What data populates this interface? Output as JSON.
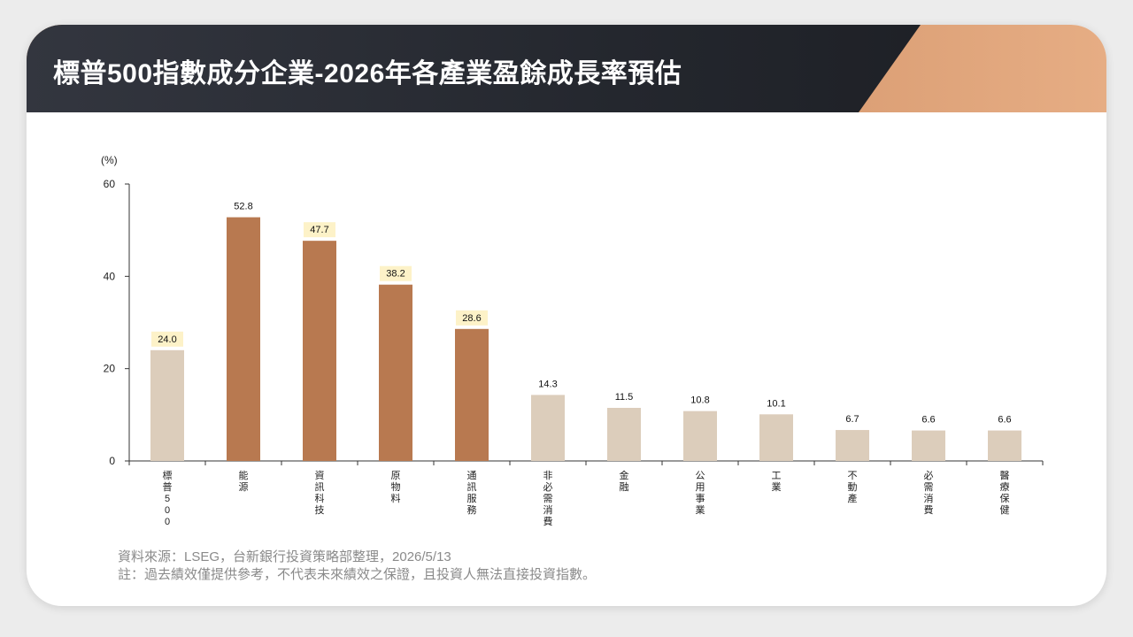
{
  "header": {
    "title": "標普500指數成分企業-2026年各產業盈餘成長率預估"
  },
  "chart_data": {
    "type": "bar",
    "unit_label": "(%)",
    "categories": [
      "標普500",
      "能源",
      "資訊科技",
      "原物料",
      "通訊服務",
      "非必需消費",
      "金融",
      "公用事業",
      "工業",
      "不動產",
      "必需消費",
      "醫療保健"
    ],
    "values": [
      24.0,
      52.8,
      47.7,
      38.2,
      28.6,
      14.3,
      11.5,
      10.8,
      10.1,
      6.7,
      6.6,
      6.6
    ],
    "value_labels": [
      "24.0",
      "52.8",
      "47.7",
      "38.2",
      "28.6",
      "14.3",
      "11.5",
      "10.8",
      "10.1",
      "6.7",
      "6.6",
      "6.6"
    ],
    "highlighted": [
      false,
      true,
      true,
      true,
      true,
      false,
      false,
      false,
      false,
      false,
      false,
      false
    ],
    "label_boxed": [
      true,
      false,
      true,
      true,
      true,
      false,
      false,
      false,
      false,
      false,
      false,
      false
    ],
    "ylim": [
      0,
      60
    ],
    "yticks": [
      0,
      20,
      40,
      60
    ],
    "colors": {
      "highlight": "#b87950",
      "normal": "#dccdbb",
      "label_box": "#fdf2c8",
      "axis": "#333333"
    },
    "legend": "none",
    "grid": false
  },
  "footnotes": {
    "source": "資料來源：LSEG，台新銀行投資策略部整理，2026/5/13",
    "note": "註：過去績效僅提供參考，不代表未來績效之保證，且投資人無法直接投資指數。"
  }
}
